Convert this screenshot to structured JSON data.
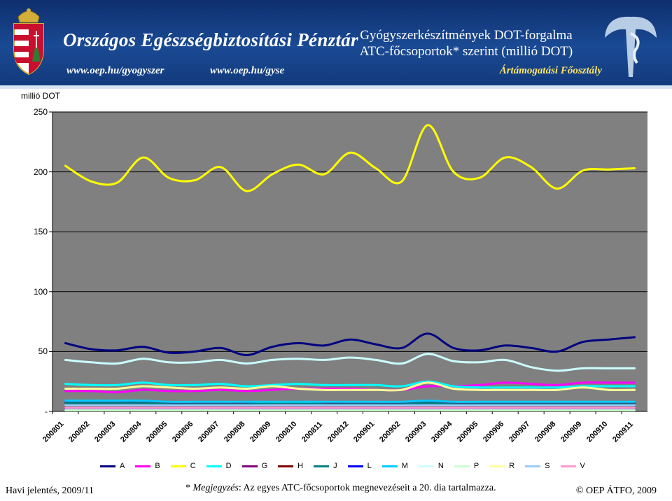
{
  "header": {
    "org_name": "Országos Egészségbiztosítási Pénztár",
    "url1": "www.oep.hu/gyogyszer",
    "url2": "www.oep.hu/gyse",
    "title_line1": "Gyógyszerkészítmények DOT-forgalma",
    "title_line2": "ATC-főcsoportok* szerint (millió DOT)",
    "department": "Ártámogatási Főosztály"
  },
  "footer": {
    "left": "Havi jelentés, 2009/11",
    "note_star": "* ",
    "note_label": "Megjegyzés",
    "note_text": ": Az egyes ATC-főcsoportok megnevezéseit a 20. dia tartalmazza.",
    "right": "© OEP ÁTFO, 2009"
  },
  "colors": {
    "banner": "#1a4a94",
    "plot_area": "#808080",
    "gridline": "#000000"
  },
  "chart_data": {
    "type": "line",
    "title": "",
    "ylabel": "millió DOT",
    "xlabel": "",
    "ylim": [
      0,
      250
    ],
    "yticks": [
      0,
      50,
      100,
      150,
      200,
      250
    ],
    "ytick_labels": [
      "-",
      "50",
      "100",
      "150",
      "200",
      "250"
    ],
    "grid": true,
    "legend_position": "bottom",
    "categories": [
      "200801",
      "200802",
      "200803",
      "200804",
      "200805",
      "200806",
      "200807",
      "200808",
      "200809",
      "200810",
      "200811",
      "200812",
      "200901",
      "200902",
      "200903",
      "200904",
      "200905",
      "200906",
      "200907",
      "200908",
      "200909",
      "200910",
      "200911"
    ],
    "series": [
      {
        "name": "A",
        "color": "#000080",
        "values": [
          57,
          52,
          51,
          54,
          49,
          50,
          53,
          47,
          54,
          57,
          55,
          60,
          56,
          53,
          65,
          53,
          51,
          55,
          53,
          50,
          58,
          60,
          62
        ]
      },
      {
        "name": "B",
        "color": "#ff00ff",
        "values": [
          17,
          17,
          16,
          18,
          17,
          17,
          18,
          17,
          18,
          19,
          19,
          19,
          18,
          18,
          21,
          21,
          22,
          24,
          23,
          22,
          24,
          24,
          24
        ]
      },
      {
        "name": "C",
        "color": "#ffff00",
        "values": [
          205,
          192,
          191,
          212,
          195,
          193,
          204,
          184,
          198,
          206,
          198,
          216,
          203,
          192,
          239,
          200,
          195,
          212,
          204,
          186,
          201,
          202,
          203
        ]
      },
      {
        "name": "D",
        "color": "#00ffff",
        "values": [
          23,
          22,
          22,
          24,
          22,
          22,
          23,
          21,
          22,
          23,
          22,
          22,
          22,
          21,
          25,
          21,
          20,
          20,
          20,
          20,
          21,
          21,
          21
        ]
      },
      {
        "name": "G",
        "color": "#800080",
        "values": [
          8,
          8,
          8,
          8,
          7,
          7,
          7,
          7,
          7,
          7,
          7,
          7,
          7,
          7,
          8,
          7,
          7,
          7,
          7,
          7,
          7,
          7,
          7
        ]
      },
      {
        "name": "H",
        "color": "#800000",
        "values": [
          4,
          4,
          4,
          4,
          4,
          4,
          4,
          4,
          4,
          4,
          4,
          4,
          4,
          4,
          4,
          4,
          4,
          4,
          4,
          4,
          4,
          4,
          4
        ]
      },
      {
        "name": "J",
        "color": "#008080",
        "values": [
          7,
          7,
          7,
          7,
          6,
          6,
          6,
          6,
          7,
          7,
          6,
          6,
          6,
          6,
          7,
          6,
          6,
          6,
          6,
          6,
          6,
          6,
          6
        ]
      },
      {
        "name": "L",
        "color": "#0000ff",
        "values": [
          2,
          2,
          2,
          2,
          2,
          2,
          2,
          2,
          2,
          2,
          2,
          2,
          2,
          2,
          2,
          2,
          2,
          2,
          2,
          2,
          2,
          2,
          2
        ]
      },
      {
        "name": "M",
        "color": "#00ccff",
        "values": [
          9,
          9,
          9,
          9,
          8,
          8,
          8,
          8,
          8,
          8,
          8,
          8,
          8,
          8,
          9,
          8,
          8,
          8,
          8,
          8,
          8,
          8,
          8
        ]
      },
      {
        "name": "N",
        "color": "#ccffff",
        "values": [
          43,
          41,
          40,
          44,
          41,
          41,
          43,
          40,
          43,
          44,
          43,
          45,
          43,
          40,
          48,
          42,
          41,
          43,
          37,
          34,
          36,
          36,
          36
        ]
      },
      {
        "name": "P",
        "color": "#ccffcc",
        "values": [
          1,
          1,
          1,
          1,
          1,
          1,
          1,
          1,
          1,
          1,
          1,
          1,
          1,
          1,
          1,
          1,
          1,
          1,
          1,
          1,
          1,
          1,
          1
        ]
      },
      {
        "name": "R",
        "color": "#ffff99",
        "values": [
          19,
          19,
          19,
          21,
          20,
          19,
          20,
          19,
          21,
          19,
          18,
          18,
          18,
          18,
          24,
          19,
          18,
          18,
          18,
          18,
          20,
          18,
          18
        ]
      },
      {
        "name": "S",
        "color": "#99ccff",
        "values": [
          5,
          5,
          5,
          5,
          5,
          5,
          5,
          5,
          5,
          5,
          5,
          5,
          5,
          5,
          5,
          5,
          5,
          5,
          5,
          5,
          5,
          5,
          5
        ]
      },
      {
        "name": "V",
        "color": "#ff99cc",
        "values": [
          3,
          3,
          3,
          3,
          3,
          3,
          3,
          3,
          3,
          3,
          3,
          3,
          3,
          3,
          3,
          3,
          3,
          3,
          3,
          3,
          3,
          3,
          3
        ]
      }
    ]
  }
}
